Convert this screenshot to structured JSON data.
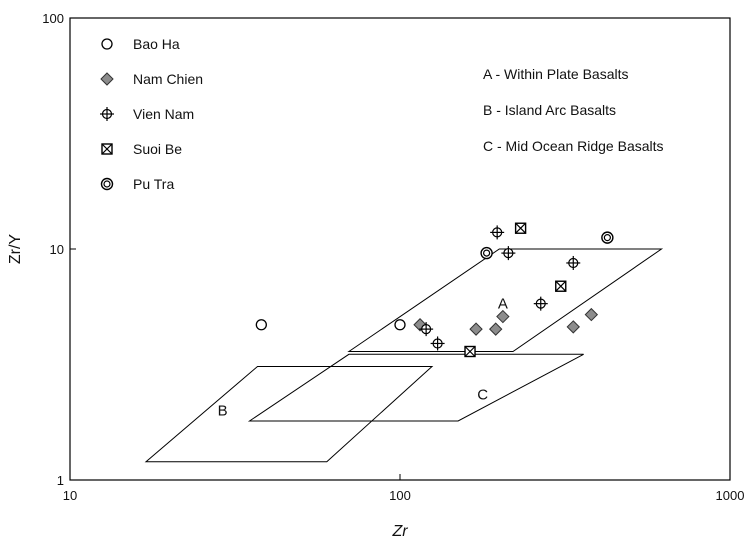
{
  "chart_data": {
    "type": "scatter",
    "title": "",
    "xlabel": "Zr",
    "ylabel": "Zr/Y",
    "xscale": "log",
    "yscale": "log",
    "xlim": [
      10,
      1000
    ],
    "ylim": [
      1,
      100
    ],
    "x_ticks": [
      "10",
      "100",
      "1000"
    ],
    "y_ticks": [
      "1",
      "10",
      "100"
    ],
    "grid": false,
    "legend_position": "top-left",
    "colors": {
      "axis": "#000000",
      "marker_fill": "#8c8c8c",
      "field_line": "#000000"
    },
    "series": [
      {
        "name": "Bao Ha",
        "marker": "circle-open",
        "points": [
          [
            38,
            4.7
          ],
          [
            100,
            4.7
          ],
          [
            183,
            9.6
          ]
        ]
      },
      {
        "name": "Nam Chien",
        "marker": "diamond-gray",
        "points": [
          [
            115,
            4.7
          ],
          [
            170,
            4.5
          ],
          [
            195,
            4.5
          ],
          [
            205,
            5.1
          ],
          [
            335,
            4.6
          ],
          [
            380,
            5.2
          ]
        ]
      },
      {
        "name": "Vien Nam",
        "marker": "circle-cross",
        "points": [
          [
            120,
            4.5
          ],
          [
            130,
            3.9
          ],
          [
            197,
            11.8
          ],
          [
            213,
            9.6
          ],
          [
            267,
            5.8
          ],
          [
            335,
            8.7
          ]
        ]
      },
      {
        "name": "Suoi Be",
        "marker": "square-x",
        "points": [
          [
            163,
            3.6
          ],
          [
            232,
            12.3
          ],
          [
            307,
            6.9
          ]
        ]
      },
      {
        "name": "Pu Tra",
        "marker": "circle-double",
        "points": [
          [
            183,
            9.6
          ],
          [
            425,
            11.2
          ]
        ]
      }
    ],
    "fields": [
      {
        "label": "A",
        "vertices": [
          [
            70,
            3.6
          ],
          [
            200,
            10
          ],
          [
            620,
            10
          ],
          [
            220,
            3.6
          ]
        ],
        "label_at": [
          205,
          5.8
        ]
      },
      {
        "label": "B",
        "vertices": [
          [
            17,
            1.2
          ],
          [
            37,
            3.1
          ],
          [
            125,
            3.1
          ],
          [
            60,
            1.2
          ]
        ],
        "label_at": [
          29,
          2
        ]
      },
      {
        "label": "C",
        "vertices": [
          [
            35,
            1.8
          ],
          [
            70,
            3.5
          ],
          [
            360,
            3.5
          ],
          [
            150,
            1.8
          ]
        ],
        "label_at": [
          178,
          2.35
        ]
      }
    ],
    "annotations": [
      "A - Within Plate Basalts",
      "B - Island Arc Basalts",
      "C - Mid Ocean Ridge Basalts"
    ]
  }
}
